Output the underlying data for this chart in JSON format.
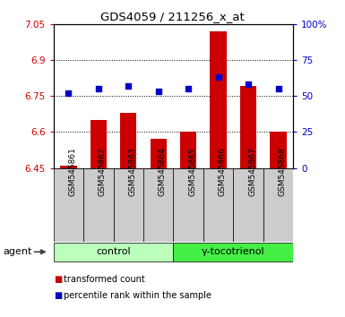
{
  "title": "GDS4059 / 211256_x_at",
  "samples": [
    "GSM545861",
    "GSM545862",
    "GSM545863",
    "GSM545864",
    "GSM545865",
    "GSM545866",
    "GSM545867",
    "GSM545868"
  ],
  "bar_values": [
    6.46,
    6.65,
    6.68,
    6.57,
    6.6,
    7.02,
    6.79,
    6.6
  ],
  "percentile_values": [
    52,
    55,
    57,
    53,
    55,
    63,
    58,
    55
  ],
  "ylim_left": [
    6.45,
    7.05
  ],
  "ylim_right": [
    0,
    100
  ],
  "yticks_left": [
    6.45,
    6.6,
    6.75,
    6.9,
    7.05
  ],
  "ytick_labels_left": [
    "6.45",
    "6.6",
    "6.75",
    "6.9",
    "7.05"
  ],
  "yticks_right": [
    0,
    25,
    50,
    75,
    100
  ],
  "ytick_labels_right": [
    "0",
    "25",
    "50",
    "75",
    "100%"
  ],
  "bar_color": "#cc0000",
  "dot_color": "#0000cc",
  "agent_label": "agent",
  "legend_bar_label": "transformed count",
  "legend_dot_label": "percentile rank within the sample",
  "bar_bottom": 6.45,
  "control_color": "#bbffbb",
  "gammat_color": "#44ee44",
  "sample_box_color": "#cccccc"
}
